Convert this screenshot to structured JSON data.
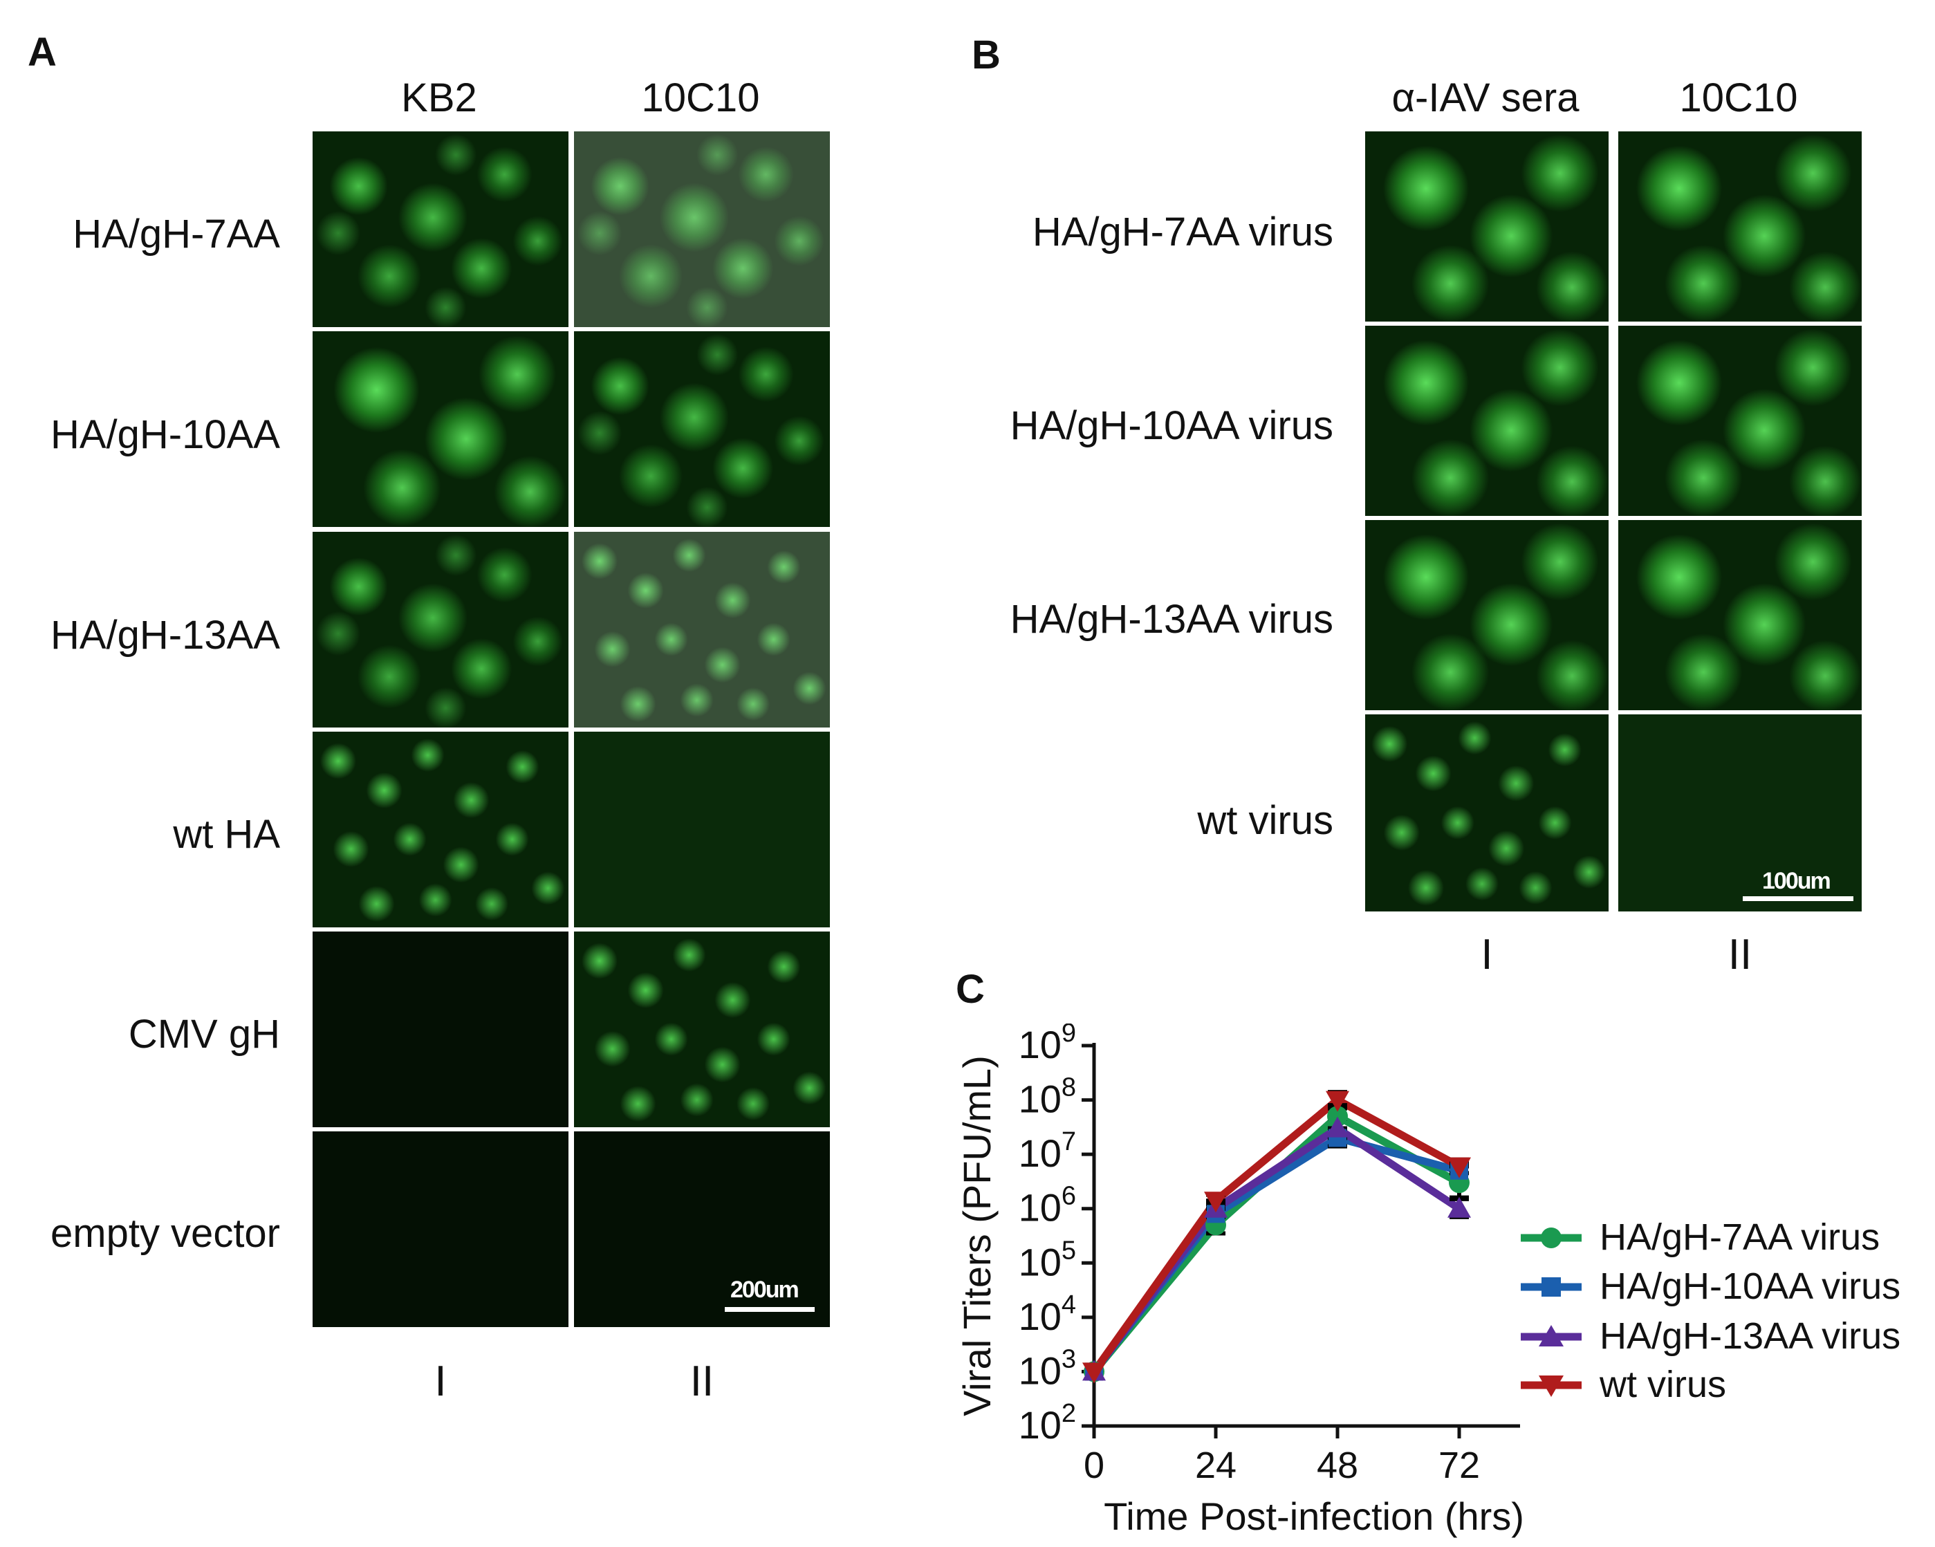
{
  "panel_a": {
    "letter": "A",
    "col_headers": [
      "KB2",
      "10C10"
    ],
    "row_labels": [
      "HA/gH-7AA",
      "HA/gH-10AA",
      "HA/gH-13AA",
      "wt HA",
      "CMV gH",
      "empty vector"
    ],
    "col_numerals": [
      "I",
      "II"
    ],
    "scale_label": "200um"
  },
  "panel_b": {
    "letter": "B",
    "col_headers": [
      "α-IAV sera",
      "10C10"
    ],
    "row_labels": [
      "HA/gH-7AA virus",
      "HA/gH-10AA virus",
      "HA/gH-13AA virus",
      "wt virus"
    ],
    "col_numerals": [
      "I",
      "II"
    ],
    "scale_label": "100um"
  },
  "panel_c": {
    "letter": "C",
    "legend_entries": [
      "HA/gH-7AA virus",
      "HA/gH-10AA virus",
      "HA/gH-13AA virus",
      "wt virus"
    ]
  },
  "chart_data": {
    "type": "line",
    "xlabel": "Time Post-infection (hrs)",
    "ylabel": "Viral Titers (PFU/mL)",
    "x": [
      0,
      24,
      48,
      72
    ],
    "x_ticks": [
      "0",
      "24",
      "48",
      "72"
    ],
    "y_scale": "log10",
    "ylim": [
      100,
      1000000000
    ],
    "y_ticks": [
      "10^2",
      "10^3",
      "10^4",
      "10^5",
      "10^6",
      "10^7",
      "10^8",
      "10^9"
    ],
    "legend_position": "right",
    "series": [
      {
        "name": "HA/gH-7AA virus",
        "color": "#1a9a50",
        "marker": "circle",
        "values": [
          1000,
          500000,
          50000000,
          3000000
        ],
        "error": [
          [
            1000,
            1000
          ],
          [
            350000,
            700000
          ],
          [
            30000000,
            80000000
          ],
          [
            1500000,
            6000000
          ]
        ]
      },
      {
        "name": "HA/gH-10AA virus",
        "color": "#1b5fae",
        "marker": "square",
        "values": [
          1000,
          800000,
          20000000,
          5000000
        ],
        "error": [
          [
            1000,
            1000
          ],
          [
            500000,
            1200000
          ],
          [
            14000000,
            30000000
          ],
          [
            3000000,
            7000000
          ]
        ]
      },
      {
        "name": "HA/gH-13AA virus",
        "color": "#5a2d9a",
        "marker": "triangle-up",
        "values": [
          1000,
          1000000,
          30000000,
          1000000
        ],
        "error": [
          [
            1000,
            1000
          ],
          [
            700000,
            1400000
          ],
          [
            20000000,
            45000000
          ],
          [
            700000,
            1600000
          ]
        ]
      },
      {
        "name": "wt virus",
        "color": "#b01c1c",
        "marker": "triangle-down",
        "values": [
          1000,
          1400000,
          100000000,
          6000000
        ],
        "error": [
          [
            1000,
            1000
          ],
          [
            1000000,
            1800000
          ],
          [
            70000000,
            140000000
          ],
          [
            4500000,
            8000000
          ]
        ]
      }
    ]
  }
}
